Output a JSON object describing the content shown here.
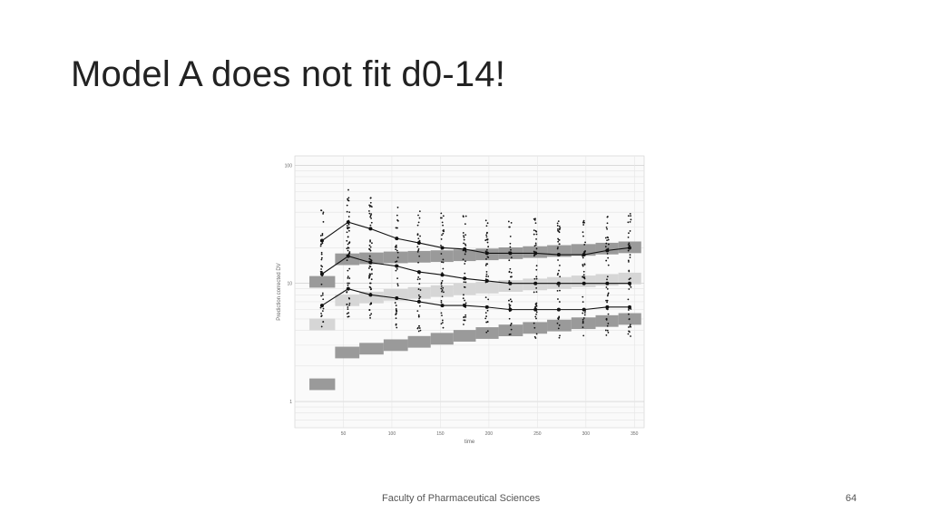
{
  "slide": {
    "title": "Model A does not fit d0-14!",
    "footer": "Faculty of Pharmaceutical Sciences",
    "page_number": "64"
  },
  "chart_data": {
    "type": "scatter",
    "xlabel": "time",
    "ylabel": "Prediction corrected DV",
    "x_ticks": [
      50,
      100,
      150,
      200,
      250,
      300,
      350
    ],
    "y_ticks_log": [
      1,
      10,
      100
    ],
    "y_scale": "log",
    "xlim": [
      0,
      360
    ],
    "ylim": [
      0.6,
      120
    ],
    "grid": true,
    "bins": [
      28,
      55,
      78,
      105,
      128,
      152,
      175,
      198,
      222,
      248,
      272,
      298,
      322,
      345
    ],
    "observed_percentiles": [
      {
        "name": "upper",
        "values": [
          23,
          33,
          29,
          24,
          22,
          20,
          19.5,
          18,
          18,
          18,
          17.5,
          17.5,
          19,
          20
        ]
      },
      {
        "name": "median",
        "values": [
          12,
          17,
          15,
          14,
          12.5,
          11.8,
          11,
          10.5,
          10,
          10,
          10,
          10,
          10,
          10
        ]
      },
      {
        "name": "lower",
        "values": [
          6.5,
          9,
          8,
          7.5,
          7,
          6.5,
          6.5,
          6.3,
          6,
          6,
          6,
          6,
          6.3,
          6.3
        ]
      }
    ],
    "prediction_intervals": [
      {
        "name": "upper-band",
        "color": "#9a9a9a",
        "values": [
          10.3,
          16.0,
          16.3,
          16.6,
          16.8,
          17.0,
          17.3,
          17.6,
          18.0,
          18.4,
          18.8,
          19.2,
          19.7,
          20.2
        ]
      },
      {
        "name": "median-band",
        "color": "#d6d6d6",
        "values": [
          4.5,
          7.2,
          7.6,
          8.0,
          8.3,
          8.6,
          8.9,
          9.2,
          9.5,
          9.8,
          10.1,
          10.4,
          10.7,
          11.0
        ]
      },
      {
        "name": "lower-band",
        "color": "#9a9a9a",
        "values": [
          1.4,
          2.6,
          2.8,
          3.0,
          3.2,
          3.4,
          3.6,
          3.8,
          4.0,
          4.2,
          4.4,
          4.6,
          4.8,
          5.0
        ]
      }
    ]
  }
}
